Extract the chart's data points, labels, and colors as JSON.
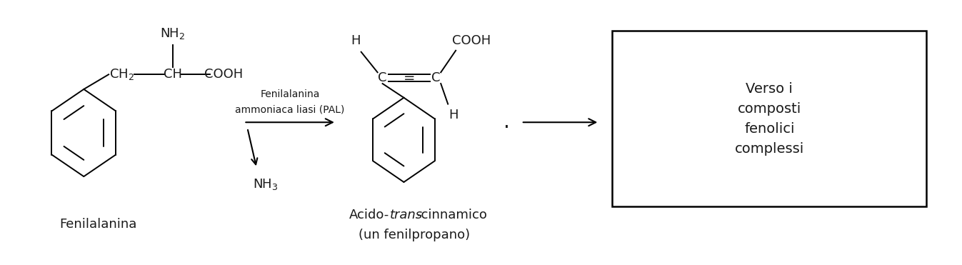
{
  "bg_color": "#ffffff",
  "text_color": "#1a1a1a",
  "fig_width": 13.47,
  "fig_height": 3.71,
  "dpi": 100,
  "phenylalanine_label": "Fenilalanina",
  "enzyme_label_1": "Fenilalanina",
  "enzyme_label_2": "ammoniaca liasi (PAL)",
  "nh3_label": "NH$_3$",
  "nh2_label": "NH$_2$",
  "ch2_label": "CH$_2$",
  "box_text": "Verso i\ncomposti\nfenolici\ncomplessi",
  "font_size_main": 13,
  "font_size_small": 11,
  "font_size_box": 14
}
